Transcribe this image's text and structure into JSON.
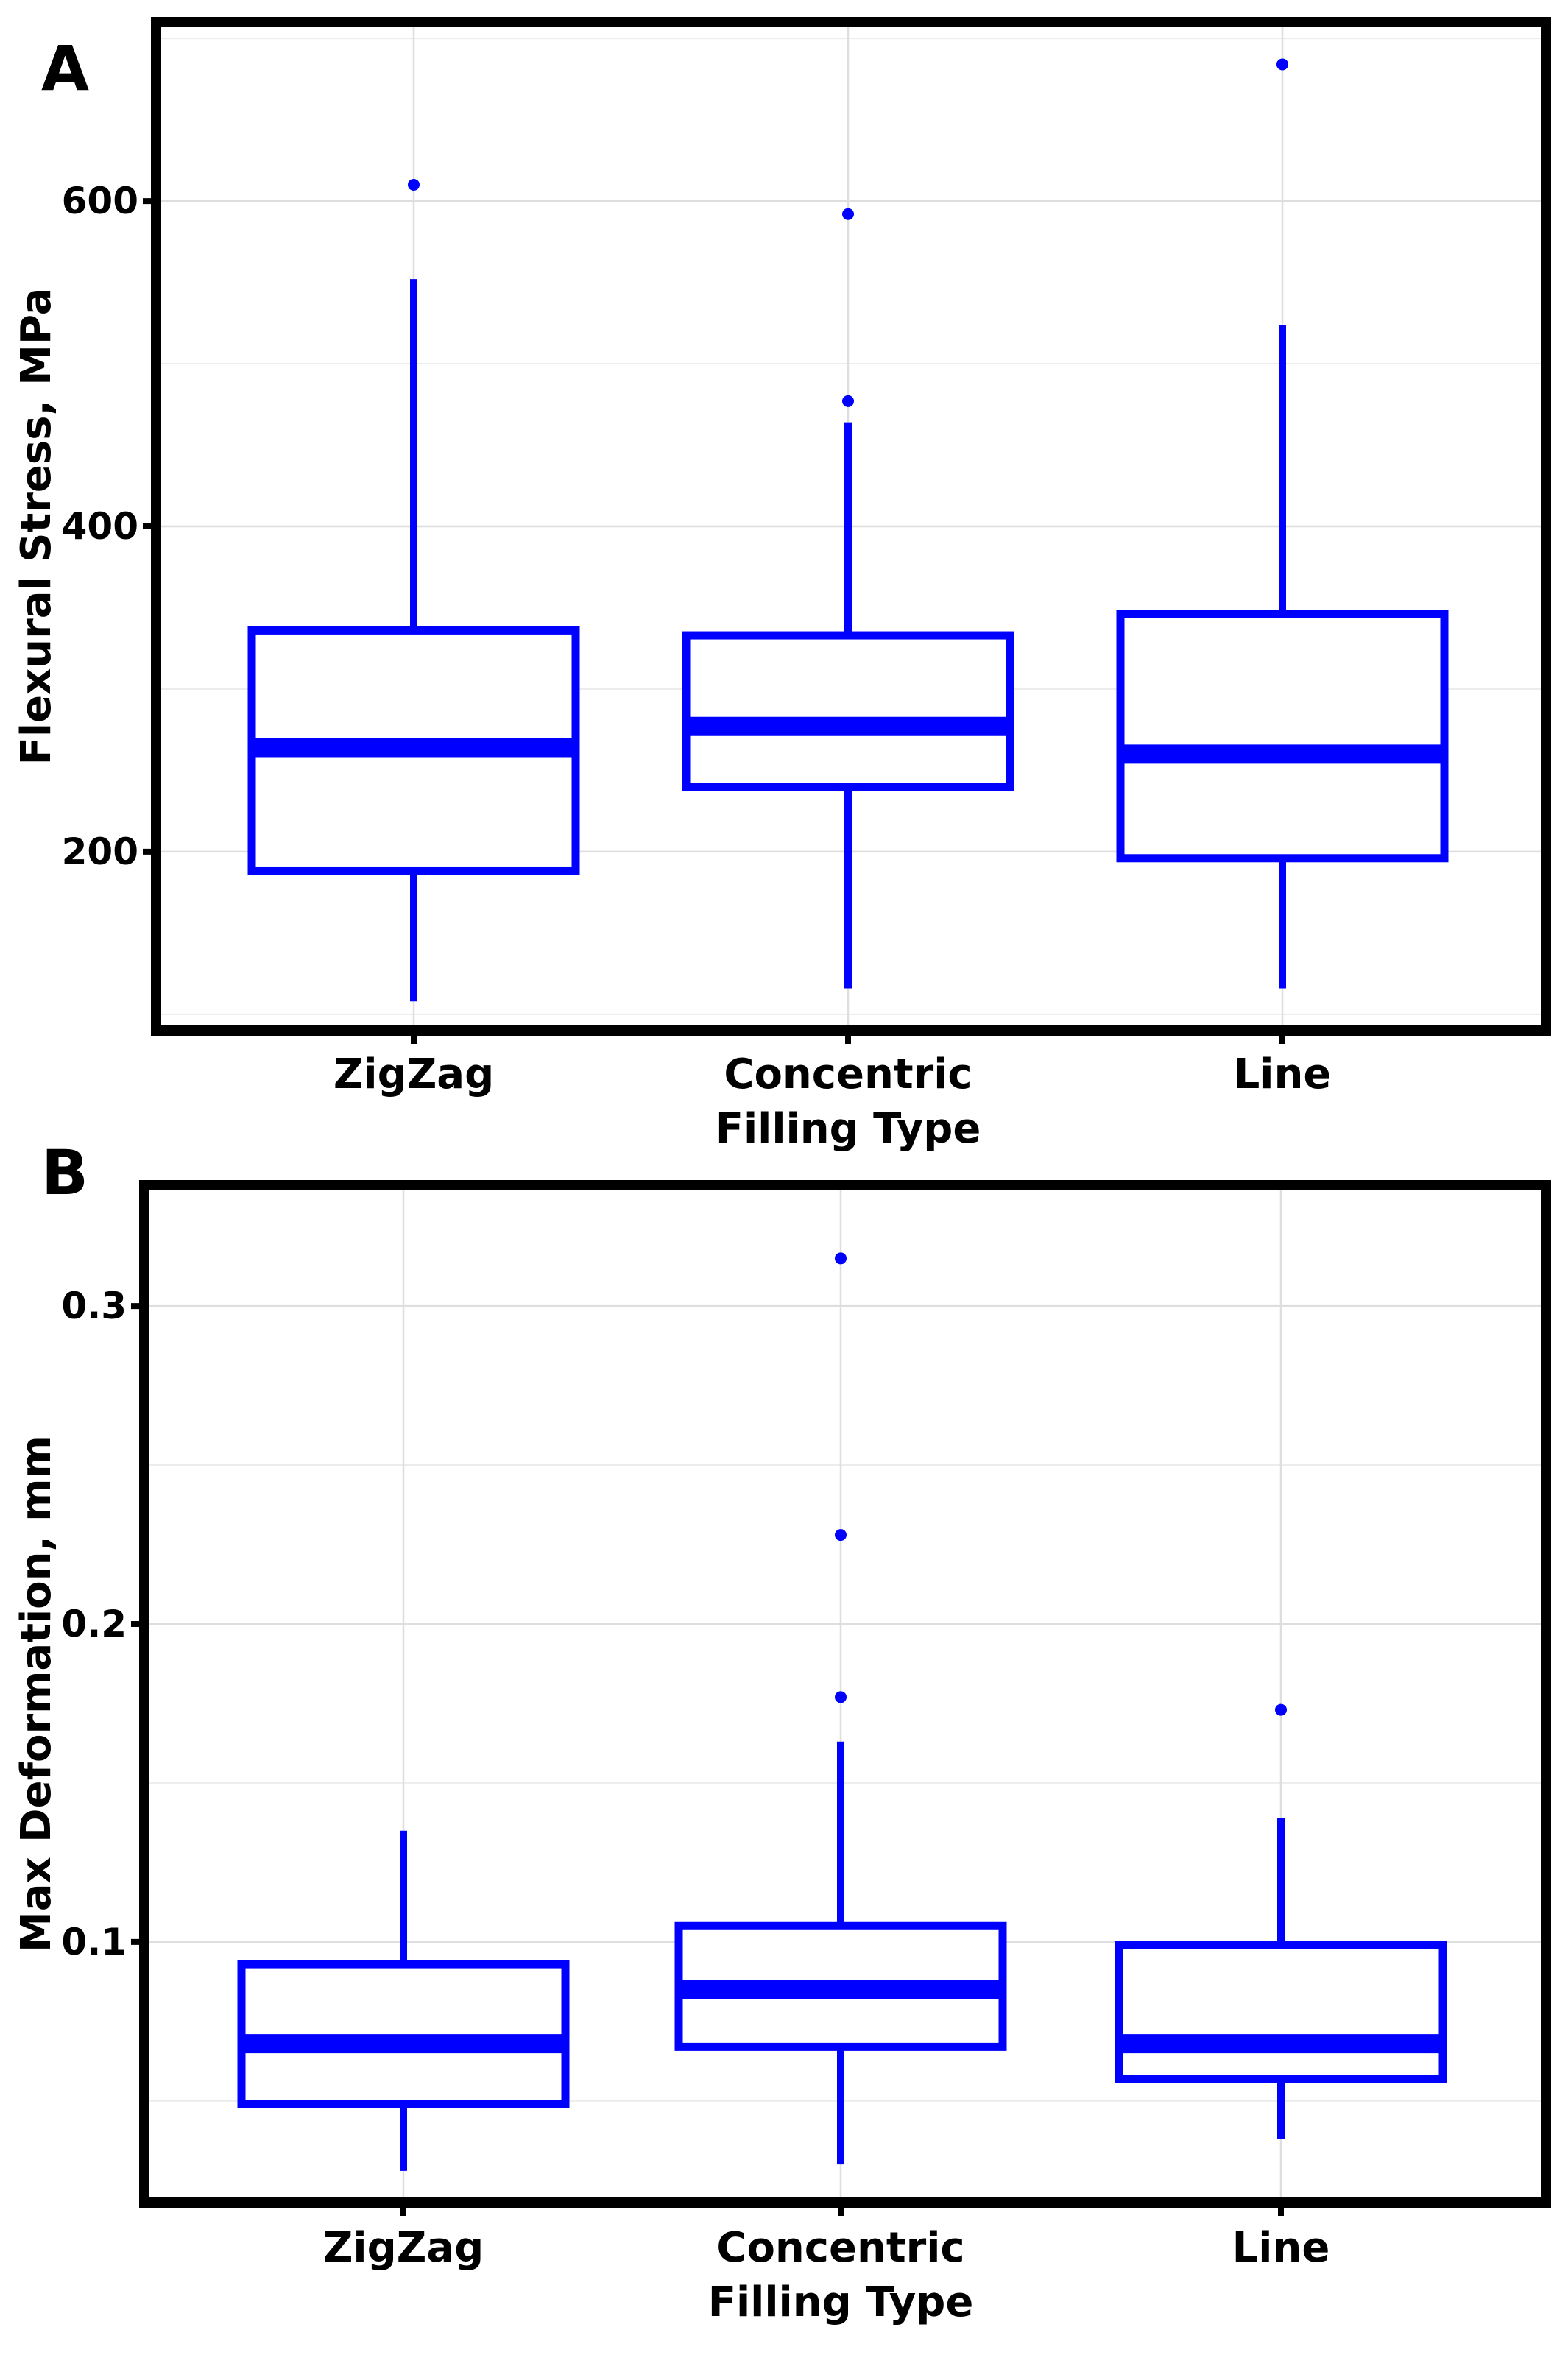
{
  "panels": [
    {
      "letter": "A"
    },
    {
      "letter": "B"
    }
  ],
  "chart_data": [
    {
      "type": "box",
      "panel": "A",
      "title": "",
      "xlabel": "Filling Type",
      "ylabel": "Flexural Stress, MPa",
      "categories": [
        "ZigZag",
        "Concentric",
        "Line"
      ],
      "yticks": [
        200,
        400,
        600
      ],
      "ylim": [
        90,
        710
      ],
      "grid": true,
      "color": "#0000ff",
      "boxes": [
        {
          "category": "ZigZag",
          "whisker_low": 108,
          "q1": 188,
          "median": 264,
          "q3": 336,
          "whisker_high": 552,
          "outliers": [
            610
          ]
        },
        {
          "category": "Concentric",
          "whisker_low": 116,
          "q1": 240,
          "median": 277,
          "q3": 333,
          "whisker_high": 464,
          "outliers": [
            477,
            592
          ]
        },
        {
          "category": "Line",
          "whisker_low": 116,
          "q1": 196,
          "median": 260,
          "q3": 346,
          "whisker_high": 524,
          "outliers": [
            684
          ]
        }
      ]
    },
    {
      "type": "box",
      "panel": "B",
      "title": "",
      "xlabel": "Filling Type",
      "ylabel": "Max Deformation, mm",
      "categories": [
        "ZigZag",
        "Concentric",
        "Line"
      ],
      "yticks": [
        0.1,
        0.2,
        0.3
      ],
      "ylim": [
        0.018,
        0.338
      ],
      "grid": true,
      "color": "#0000ff",
      "boxes": [
        {
          "category": "ZigZag",
          "whisker_low": 0.028,
          "q1": 0.049,
          "median": 0.068,
          "q3": 0.093,
          "whisker_high": 0.135,
          "outliers": []
        },
        {
          "category": "Concentric",
          "whisker_low": 0.03,
          "q1": 0.067,
          "median": 0.085,
          "q3": 0.105,
          "whisker_high": 0.163,
          "outliers": [
            0.177,
            0.228,
            0.315
          ]
        },
        {
          "category": "Line",
          "whisker_low": 0.038,
          "q1": 0.057,
          "median": 0.068,
          "q3": 0.099,
          "whisker_high": 0.139,
          "outliers": [
            0.173
          ]
        }
      ]
    }
  ]
}
